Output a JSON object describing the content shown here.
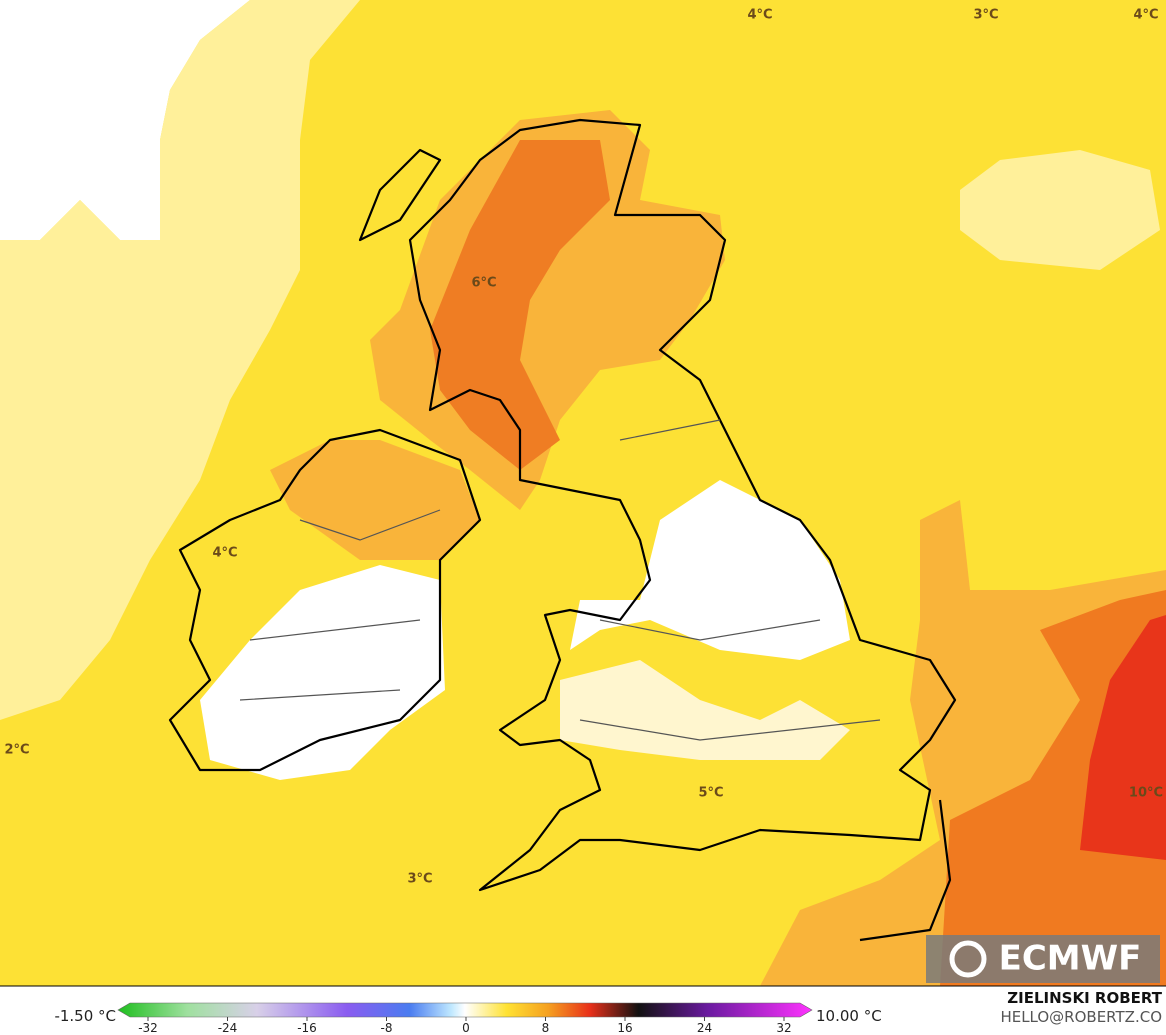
{
  "map": {
    "labels": [
      "4°C",
      "3°C",
      "4°C",
      "6°C",
      "4°C",
      "2°C",
      "5°C",
      "10°C",
      "3°C"
    ],
    "logo": "ECMWF"
  },
  "colorbar": {
    "min_label": "-1.50 °C",
    "max_label": "10.00 °C",
    "ticks": [
      -32,
      -24,
      -16,
      -8,
      0,
      8,
      16,
      24,
      32
    ]
  },
  "credits": {
    "author": "ZIELINSKI ROBERT",
    "contact": "HELLO@ROBERTZ.CO"
  }
}
